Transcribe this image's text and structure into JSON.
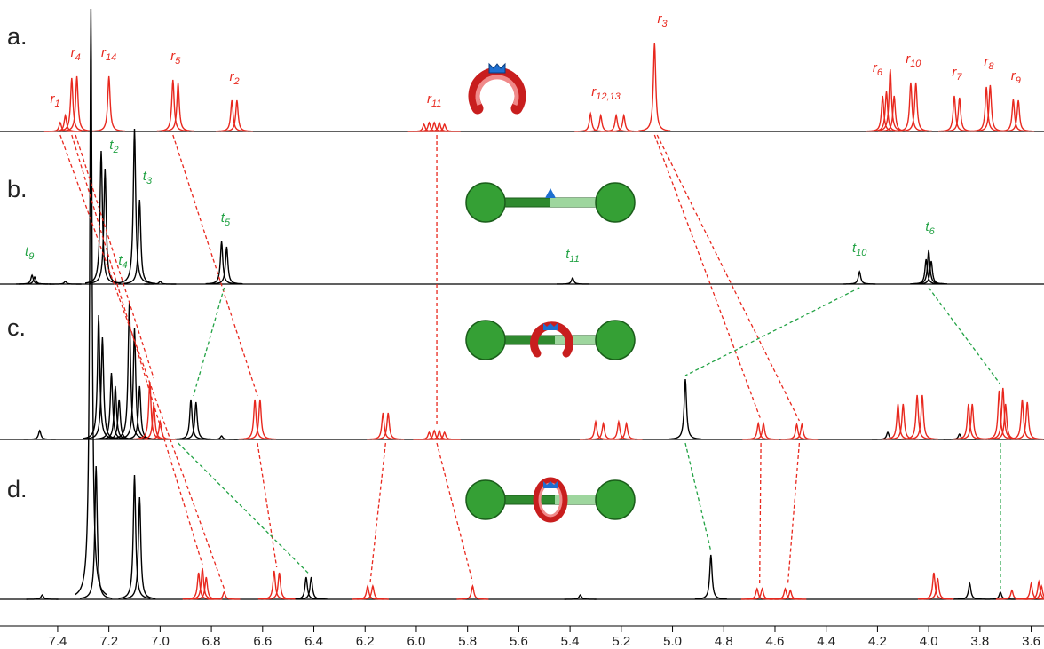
{
  "chart_data": {
    "type": "nmr",
    "xlim": [
      7.625,
      3.55
    ],
    "xticks": [
      7.4,
      7.2,
      {
        "value": 7,
        "label": "7.0"
      },
      6.8,
      6.6,
      6.4,
      6.2,
      {
        "value": 6,
        "label": "6.0"
      },
      5.8,
      5.6,
      5.4,
      5.2,
      {
        "value": 5,
        "label": "5.0"
      },
      4.8,
      4.6,
      4.4,
      4.2,
      {
        "value": 4,
        "label": "4.0"
      },
      3.8,
      3.6
    ],
    "spectra": [
      {
        "label": "a.",
        "label_color": "#e8281e",
        "series": [
          {
            "color": "#e8281e",
            "ppm": [
              7.39,
              7.37,
              7.345,
              7.325,
              7.2,
              6.95,
              6.93,
              6.72,
              6.7,
              5.97,
              5.95,
              5.93,
              5.91,
              5.89,
              5.32,
              5.28,
              5.22,
              5.19,
              5.07,
              4.18,
              4.165,
              4.15,
              4.135,
              4.07,
              4.05,
              3.9,
              3.88,
              3.775,
              3.76,
              3.67,
              3.65
            ],
            "height": [
              10,
              18,
              60,
              62,
              62,
              58,
              55,
              35,
              35,
              8,
              10,
              10,
              10,
              8,
              20,
              18,
              18,
              18,
              100,
              40,
              45,
              70,
              40,
              55,
              55,
              40,
              38,
              50,
              52,
              36,
              35
            ]
          }
        ],
        "labels": [
          {
            "text": "r",
            "sub": "1",
            "ppm": 7.41
          },
          {
            "text": "r",
            "sub": "4",
            "ppm": 7.33
          },
          {
            "text": "r",
            "sub": "14",
            "ppm": 7.2
          },
          {
            "text": "r",
            "sub": "5",
            "ppm": 6.94
          },
          {
            "text": "r",
            "sub": "2",
            "ppm": 6.71
          },
          {
            "text": "r",
            "sub": "11",
            "ppm": 5.93
          },
          {
            "text": "r",
            "sub": "12,13",
            "ppm": 5.26
          },
          {
            "text": "r",
            "sub": "3",
            "ppm": 5.04
          },
          {
            "text": "r",
            "sub": "6",
            "ppm": 4.2
          },
          {
            "text": "r",
            "sub": "10",
            "ppm": 4.06
          },
          {
            "text": "r",
            "sub": "7",
            "ppm": 3.89
          },
          {
            "text": "r",
            "sub": "8",
            "ppm": 3.765
          },
          {
            "text": "r",
            "sub": "9",
            "ppm": 3.66
          }
        ]
      },
      {
        "label": "b.",
        "label_color": "#22a244",
        "series": [
          {
            "color": "#000000",
            "ppm": [
              7.5,
              7.49,
              7.37,
              7.23,
              7.215,
              7.1,
              7.08,
              7.0,
              6.76,
              6.74,
              5.39,
              4.27,
              4.01,
              4.0,
              3.99
            ],
            "height": [
              10,
              8,
              3,
              150,
              130,
              175,
              95,
              3,
              48,
              42,
              7,
              14,
              28,
              38,
              26
            ]
          }
        ],
        "labels": [
          {
            "text": "t",
            "sub": "9",
            "ppm": 7.51
          },
          {
            "text": "t",
            "sub": "2",
            "ppm": 7.18
          },
          {
            "text": "t",
            "sub": "3",
            "ppm": 7.05
          },
          {
            "text": "t",
            "sub": "4",
            "ppm": 7.145
          },
          {
            "text": "t",
            "sub": "5",
            "ppm": 6.745
          },
          {
            "text": "t",
            "sub": "11",
            "ppm": 5.39
          },
          {
            "text": "t",
            "sub": "10",
            "ppm": 4.27
          },
          {
            "text": "t",
            "sub": "6",
            "ppm": 3.995
          }
        ]
      },
      {
        "label": "c.",
        "label_color": "#000000",
        "series": [
          {
            "color": "#000000",
            "ppm": [
              7.47,
              7.24,
              7.225,
              7.19,
              7.175,
              7.16,
              7.12,
              7.1,
              7.08,
              6.88,
              6.86,
              6.76,
              4.95,
              4.16,
              3.88
            ],
            "height": [
              10,
              140,
              115,
              75,
              60,
              45,
              155,
              125,
              60,
              45,
              42,
              4,
              68,
              8,
              6
            ]
          },
          {
            "color": "#e8281e",
            "ppm": [
              7.04,
              7.025,
              7.0,
              6.63,
              6.61,
              6.13,
              6.11,
              5.95,
              5.93,
              5.91,
              5.89,
              5.3,
              5.27,
              5.21,
              5.18,
              4.665,
              4.645,
              4.515,
              4.495,
              4.12,
              4.1,
              4.045,
              4.025,
              3.845,
              3.83,
              3.725,
              3.71,
              3.7,
              3.635,
              3.615
            ],
            "height": [
              65,
              40,
              20,
              45,
              45,
              30,
              30,
              8,
              10,
              10,
              8,
              20,
              18,
              20,
              18,
              18,
              18,
              17,
              17,
              40,
              40,
              50,
              50,
              40,
              40,
              55,
              58,
              40,
              45,
              42
            ]
          }
        ],
        "labels": []
      },
      {
        "label": "d.",
        "label_color": "#000000",
        "series": [
          {
            "color": "#000000",
            "ppm": [
              7.46,
              7.27,
              7.25,
              7.1,
              7.08,
              6.43,
              6.41,
              5.36,
              4.85,
              3.84,
              3.72
            ],
            "height": [
              5,
              665,
              150,
              140,
              115,
              25,
              25,
              5,
              50,
              18,
              8
            ]
          },
          {
            "color": "#e8281e",
            "ppm": [
              6.85,
              6.835,
              6.82,
              6.75,
              6.555,
              6.535,
              6.19,
              6.17,
              5.78,
              4.67,
              4.65,
              4.56,
              4.54,
              3.98,
              3.965,
              3.675,
              3.6,
              3.57,
              3.56
            ],
            "height": [
              30,
              35,
              25,
              8,
              32,
              30,
              15,
              15,
              15,
              12,
              12,
              12,
              10,
              30,
              24,
              10,
              18,
              20,
              15
            ]
          }
        ],
        "labels": []
      }
    ],
    "links": [
      {
        "color": "#e8281e",
        "from": [
          0,
          7.39
        ],
        "to": [
          3,
          6.75
        ]
      },
      {
        "color": "#e8281e",
        "from": [
          0,
          7.345
        ],
        "to": [
          3,
          6.835
        ]
      },
      {
        "color": "#e8281e",
        "from": [
          0,
          7.33
        ],
        "to": [
          2,
          7.025
        ]
      },
      {
        "color": "#e8281e",
        "from": [
          0,
          6.95
        ],
        "to": [
          2,
          6.62
        ]
      },
      {
        "color": "#e8281e",
        "from": [
          2,
          6.62
        ],
        "to": [
          3,
          6.545
        ]
      },
      {
        "color": "#e8281e",
        "from": [
          0,
          5.92
        ],
        "to": [
          2,
          5.92
        ]
      },
      {
        "color": "#e8281e",
        "from": [
          2,
          6.12
        ],
        "to": [
          3,
          6.18
        ]
      },
      {
        "color": "#e8281e",
        "from": [
          2,
          5.92
        ],
        "to": [
          3,
          5.78
        ]
      },
      {
        "color": "#e8281e",
        "from": [
          0,
          5.07
        ],
        "to": [
          2,
          4.655
        ]
      },
      {
        "color": "#e8281e",
        "from": [
          0,
          5.06
        ],
        "to": [
          2,
          4.505
        ]
      },
      {
        "color": "#e8281e",
        "from": [
          2,
          4.655
        ],
        "to": [
          3,
          4.66
        ]
      },
      {
        "color": "#e8281e",
        "from": [
          2,
          4.505
        ],
        "to": [
          3,
          4.55
        ]
      },
      {
        "color": "#22a244",
        "from": [
          1,
          6.75
        ],
        "to": [
          2,
          6.87
        ]
      },
      {
        "color": "#22a244",
        "from": [
          2,
          6.93
        ],
        "to": [
          3,
          6.42
        ]
      },
      {
        "color": "#22a244",
        "from": [
          1,
          4.27
        ],
        "to": [
          2,
          4.95
        ]
      },
      {
        "color": "#22a244",
        "from": [
          1,
          4.0
        ],
        "to": [
          2,
          3.72
        ]
      },
      {
        "color": "#22a244",
        "from": [
          2,
          4.95
        ],
        "to": [
          3,
          4.85
        ]
      },
      {
        "color": "#22a244",
        "from": [
          2,
          3.72
        ],
        "to": [
          3,
          3.72
        ]
      }
    ]
  }
}
